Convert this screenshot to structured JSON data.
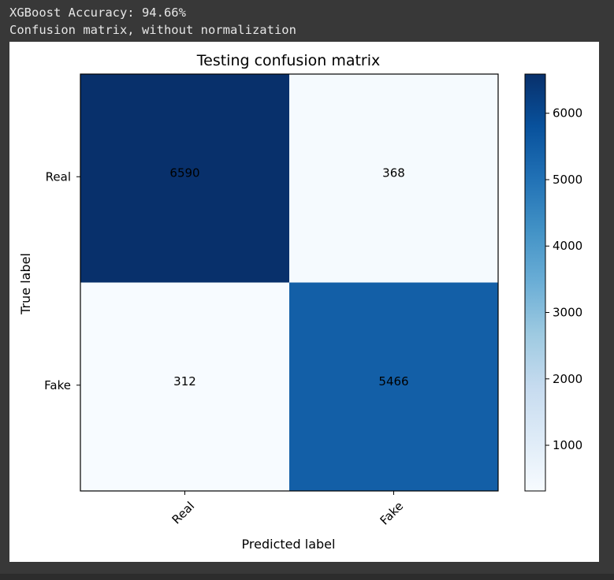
{
  "output": {
    "accuracy_line": "XGBoost Accuracy: 94.66%",
    "matrix_note": "Confusion matrix, without normalization"
  },
  "chart_data": {
    "type": "heatmap",
    "title": "Testing confusion matrix",
    "xlabel": "Predicted label",
    "ylabel": "True label",
    "row_labels": [
      "Real",
      "Fake"
    ],
    "col_labels": [
      "Real",
      "Fake"
    ],
    "values": [
      [
        6590,
        368
      ],
      [
        312,
        5466
      ]
    ],
    "colormap": "Blues",
    "colorbar": {
      "min": 312,
      "max": 6590,
      "ticks": [
        1000,
        2000,
        3000,
        4000,
        5000,
        6000
      ]
    },
    "colors": {
      "low": "#f7fbff",
      "high": "#08306b"
    }
  }
}
